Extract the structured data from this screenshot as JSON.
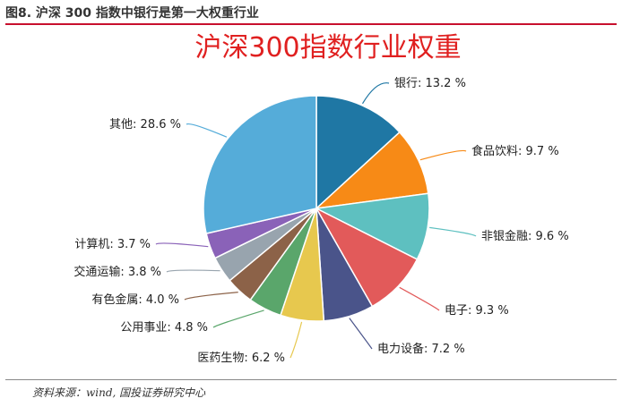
{
  "figure": {
    "caption": "图8. 沪深 300 指数中银行是第一大权重行业",
    "source": "资料来源：wind, 国投证券研究中心"
  },
  "chart_data": {
    "type": "pie",
    "title": "沪深300指数行业权重",
    "title_color": "#e02020",
    "start_angle_deg": 0,
    "direction": "clockwise",
    "slices": [
      {
        "label": "银行",
        "value": 13.2,
        "display": "银行: 13.2 %",
        "color": "#1f77a4"
      },
      {
        "label": "食品饮料",
        "value": 9.7,
        "display": "食品饮料: 9.7 %",
        "color": "#f78a16"
      },
      {
        "label": "非银金融",
        "value": 9.6,
        "display": "非银金融: 9.6 %",
        "color": "#5ec0c0"
      },
      {
        "label": "电子",
        "value": 9.3,
        "display": "电子: 9.3 %",
        "color": "#e25a5a"
      },
      {
        "label": "电力设备",
        "value": 7.2,
        "display": "电力设备: 7.2 %",
        "color": "#4a548a"
      },
      {
        "label": "医药生物",
        "value": 6.2,
        "display": "医药生物: 6.2 %",
        "color": "#e7c84e"
      },
      {
        "label": "公用事业",
        "value": 4.8,
        "display": "公用事业: 4.8 %",
        "color": "#5aa66b"
      },
      {
        "label": "有色金属",
        "value": 4.0,
        "display": "有色金属: 4.0 %",
        "color": "#8c6248"
      },
      {
        "label": "交通运输",
        "value": 3.8,
        "display": "交通运输: 3.8 %",
        "color": "#98a4ae"
      },
      {
        "label": "计算机",
        "value": 3.7,
        "display": "计算机: 3.7 %",
        "color": "#8a62b8"
      },
      {
        "label": "其他",
        "value": 28.6,
        "display": "其他: 28.6 %",
        "color": "#55acd9"
      }
    ]
  }
}
